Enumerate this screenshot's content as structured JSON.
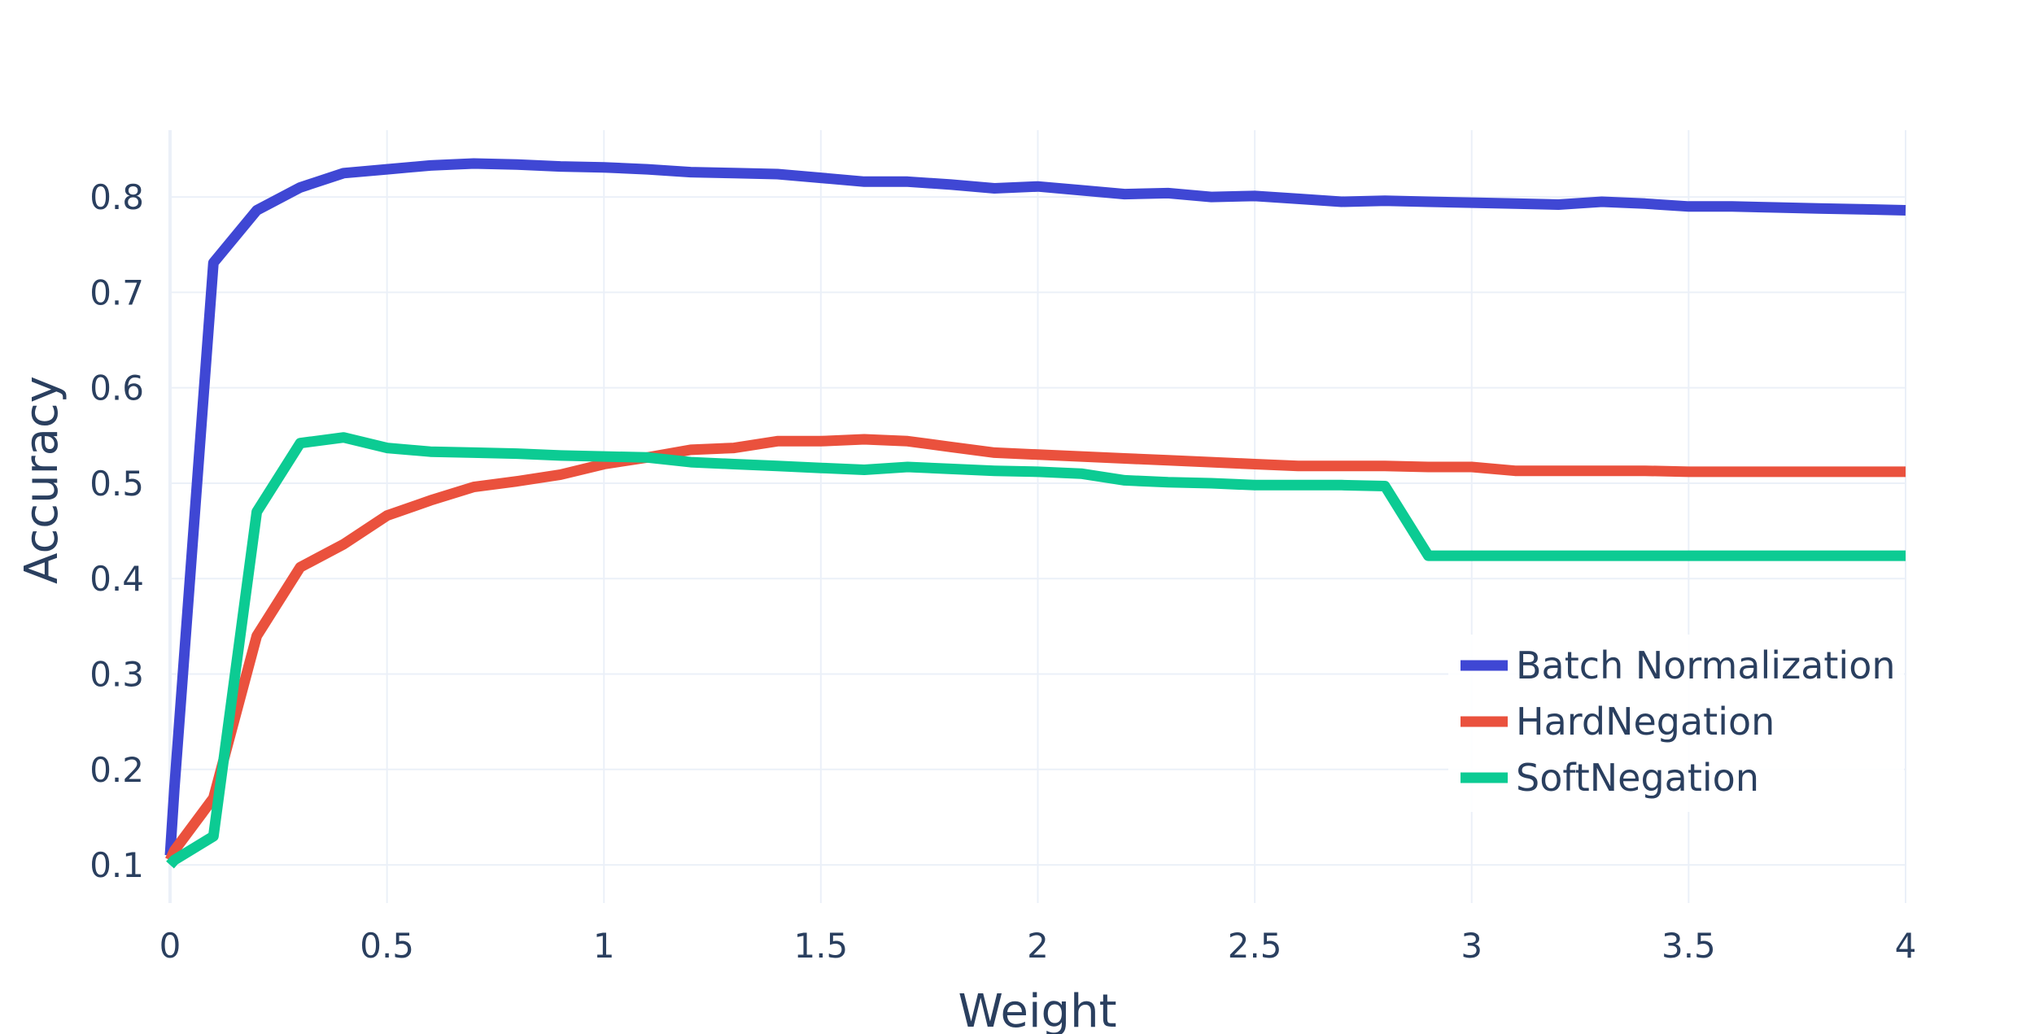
{
  "chart_data": {
    "type": "line",
    "title": "",
    "xlabel": "Weight",
    "ylabel": "Accuracy",
    "xlim": [
      0,
      4
    ],
    "ylim": [
      0.06,
      0.87
    ],
    "grid": true,
    "legend_position": "bottom-right",
    "x_ticks": [
      0,
      0.5,
      1,
      1.5,
      2,
      2.5,
      3,
      3.5,
      4
    ],
    "x_tick_labels": [
      "0",
      "0.5",
      "1",
      "1.5",
      "2",
      "2.5",
      "3",
      "3.5",
      "4"
    ],
    "y_ticks": [
      0.1,
      0.2,
      0.3,
      0.4,
      0.5,
      0.6,
      0.7,
      0.8
    ],
    "y_tick_labels": [
      "0.1",
      "0.2",
      "0.3",
      "0.4",
      "0.5",
      "0.6",
      "0.7",
      "0.8"
    ],
    "x": [
      0,
      0.01,
      0.1,
      0.2,
      0.3,
      0.4,
      0.5,
      0.6,
      0.7,
      0.8,
      0.9,
      1.0,
      1.1,
      1.2,
      1.3,
      1.4,
      1.5,
      1.6,
      1.7,
      1.8,
      1.9,
      2.0,
      2.1,
      2.2,
      2.3,
      2.4,
      2.5,
      2.6,
      2.7,
      2.8,
      2.9,
      3.0,
      3.1,
      3.2,
      3.3,
      3.4,
      3.5,
      3.6,
      3.7,
      3.8,
      3.9,
      4.0
    ],
    "series": [
      {
        "name": "Batch Normalization",
        "color": "#3f47d4",
        "values": [
          0.11,
          0.18,
          0.731,
          0.786,
          0.81,
          0.825,
          0.829,
          0.833,
          0.835,
          0.834,
          0.832,
          0.831,
          0.829,
          0.826,
          0.825,
          0.824,
          0.82,
          0.816,
          0.816,
          0.813,
          0.809,
          0.811,
          0.807,
          0.803,
          0.804,
          0.8,
          0.801,
          0.798,
          0.795,
          0.796,
          0.795,
          0.794,
          0.793,
          0.792,
          0.795,
          0.793,
          0.79,
          0.79,
          0.789,
          0.788,
          0.787,
          0.786
        ]
      },
      {
        "name": "HardNegation",
        "color": "#ea513d",
        "values": [
          0.105,
          0.115,
          0.17,
          0.34,
          0.412,
          0.436,
          0.466,
          0.482,
          0.496,
          0.502,
          0.509,
          0.52,
          0.527,
          0.535,
          0.537,
          0.544,
          0.544,
          0.546,
          0.544,
          0.538,
          0.532,
          0.53,
          0.528,
          0.526,
          0.524,
          0.522,
          0.52,
          0.518,
          0.518,
          0.518,
          0.517,
          0.517,
          0.513,
          0.513,
          0.513,
          0.513,
          0.512,
          0.512,
          0.512,
          0.512,
          0.512,
          0.512
        ]
      },
      {
        "name": "SoftNegation",
        "color": "#0ccb93",
        "values": [
          0.1,
          0.105,
          0.13,
          0.47,
          0.542,
          0.548,
          0.537,
          0.533,
          0.532,
          0.531,
          0.529,
          0.528,
          0.527,
          0.522,
          0.52,
          0.518,
          0.516,
          0.514,
          0.517,
          0.515,
          0.513,
          0.512,
          0.51,
          0.503,
          0.501,
          0.5,
          0.498,
          0.498,
          0.498,
          0.497,
          0.424,
          0.424,
          0.424,
          0.424,
          0.424,
          0.424,
          0.424,
          0.424,
          0.424,
          0.424,
          0.424,
          0.424
        ]
      }
    ]
  }
}
